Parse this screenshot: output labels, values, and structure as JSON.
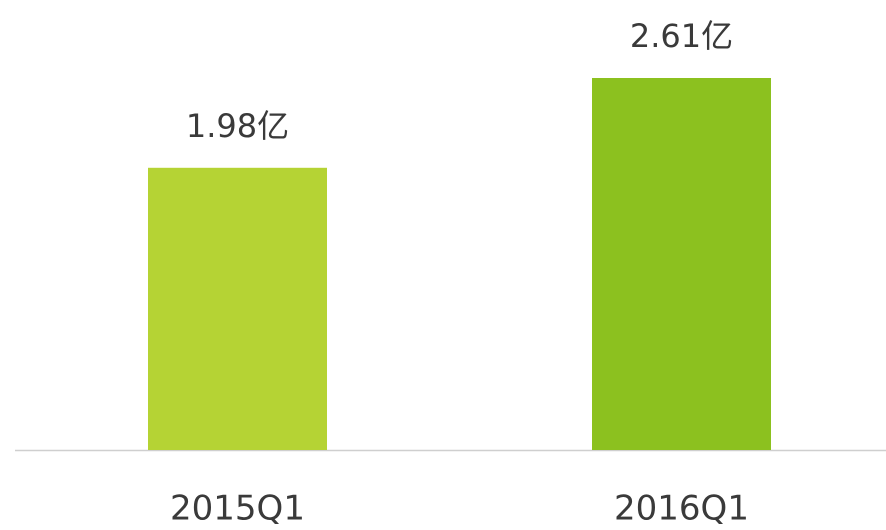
{
  "chart_data": {
    "type": "bar",
    "categories": [
      "2015Q1",
      "2016Q1"
    ],
    "values": [
      1.98,
      2.61
    ],
    "value_labels": [
      "1.98亿",
      "2.61亿"
    ],
    "colors": [
      "#b5d334",
      "#8cc11f"
    ]
  }
}
